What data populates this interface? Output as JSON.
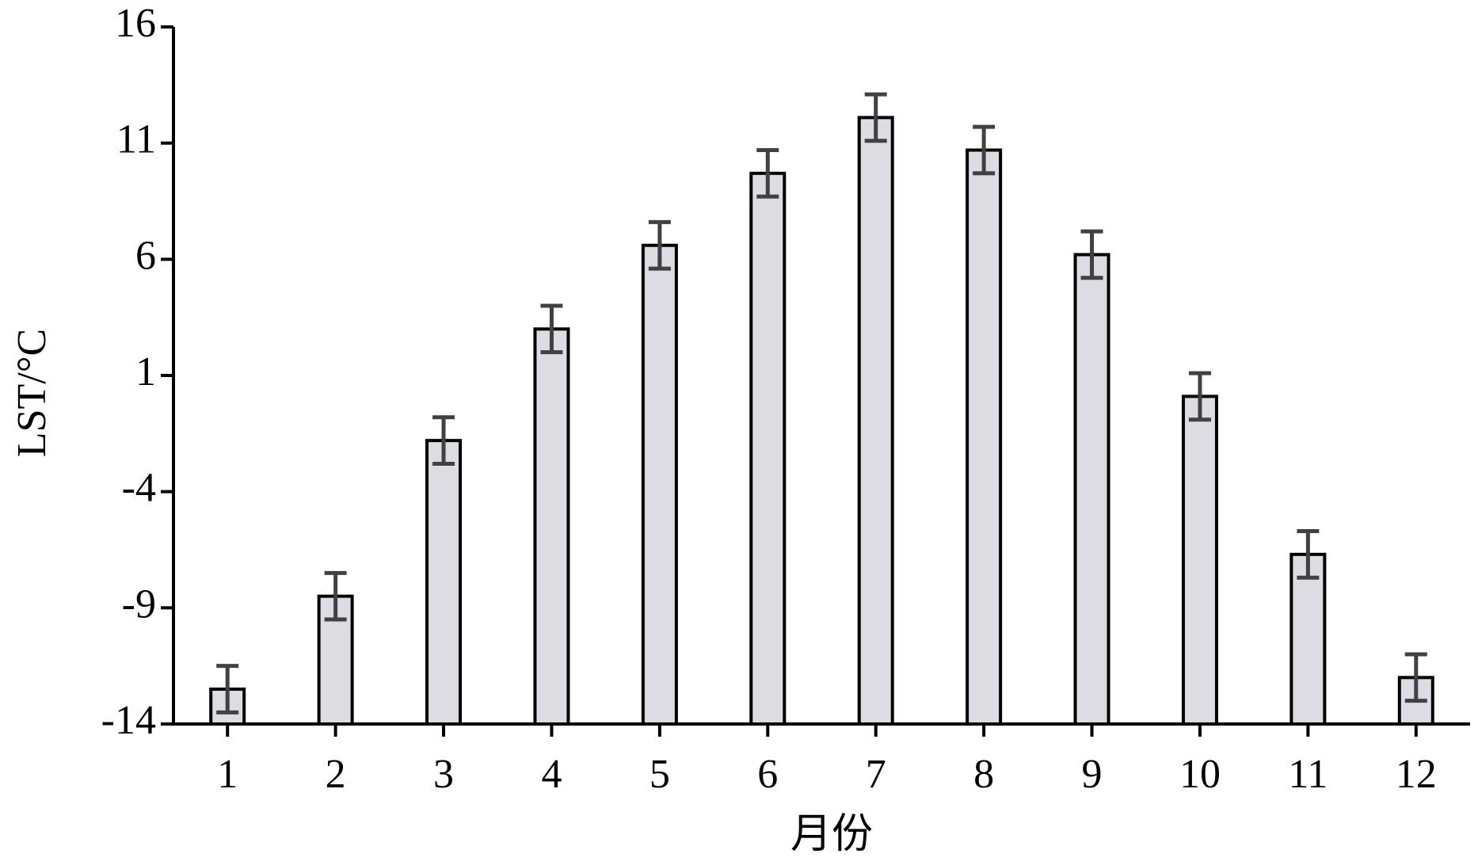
{
  "chart_data": {
    "type": "bar",
    "ylabel": "LST/°C",
    "xlabel": "月份",
    "categories": [
      "1",
      "2",
      "3",
      "4",
      "5",
      "6",
      "7",
      "8",
      "9",
      "10",
      "11",
      "12"
    ],
    "values": [
      -12.5,
      -8.5,
      -1.8,
      3.0,
      6.6,
      9.7,
      12.1,
      10.7,
      6.2,
      0.1,
      -6.7,
      -12.0
    ],
    "errors": [
      1.0,
      1.0,
      1.0,
      1.0,
      1.0,
      1.0,
      1.0,
      1.0,
      1.0,
      1.0,
      1.0,
      1.0
    ],
    "color": "#dcdce2",
    "edge_color": "#000000",
    "error_color": "#444040",
    "ylim": [
      -14,
      16
    ],
    "yticks": [
      -14,
      -9,
      -4,
      1,
      6,
      11,
      16
    ],
    "grid": false
  }
}
